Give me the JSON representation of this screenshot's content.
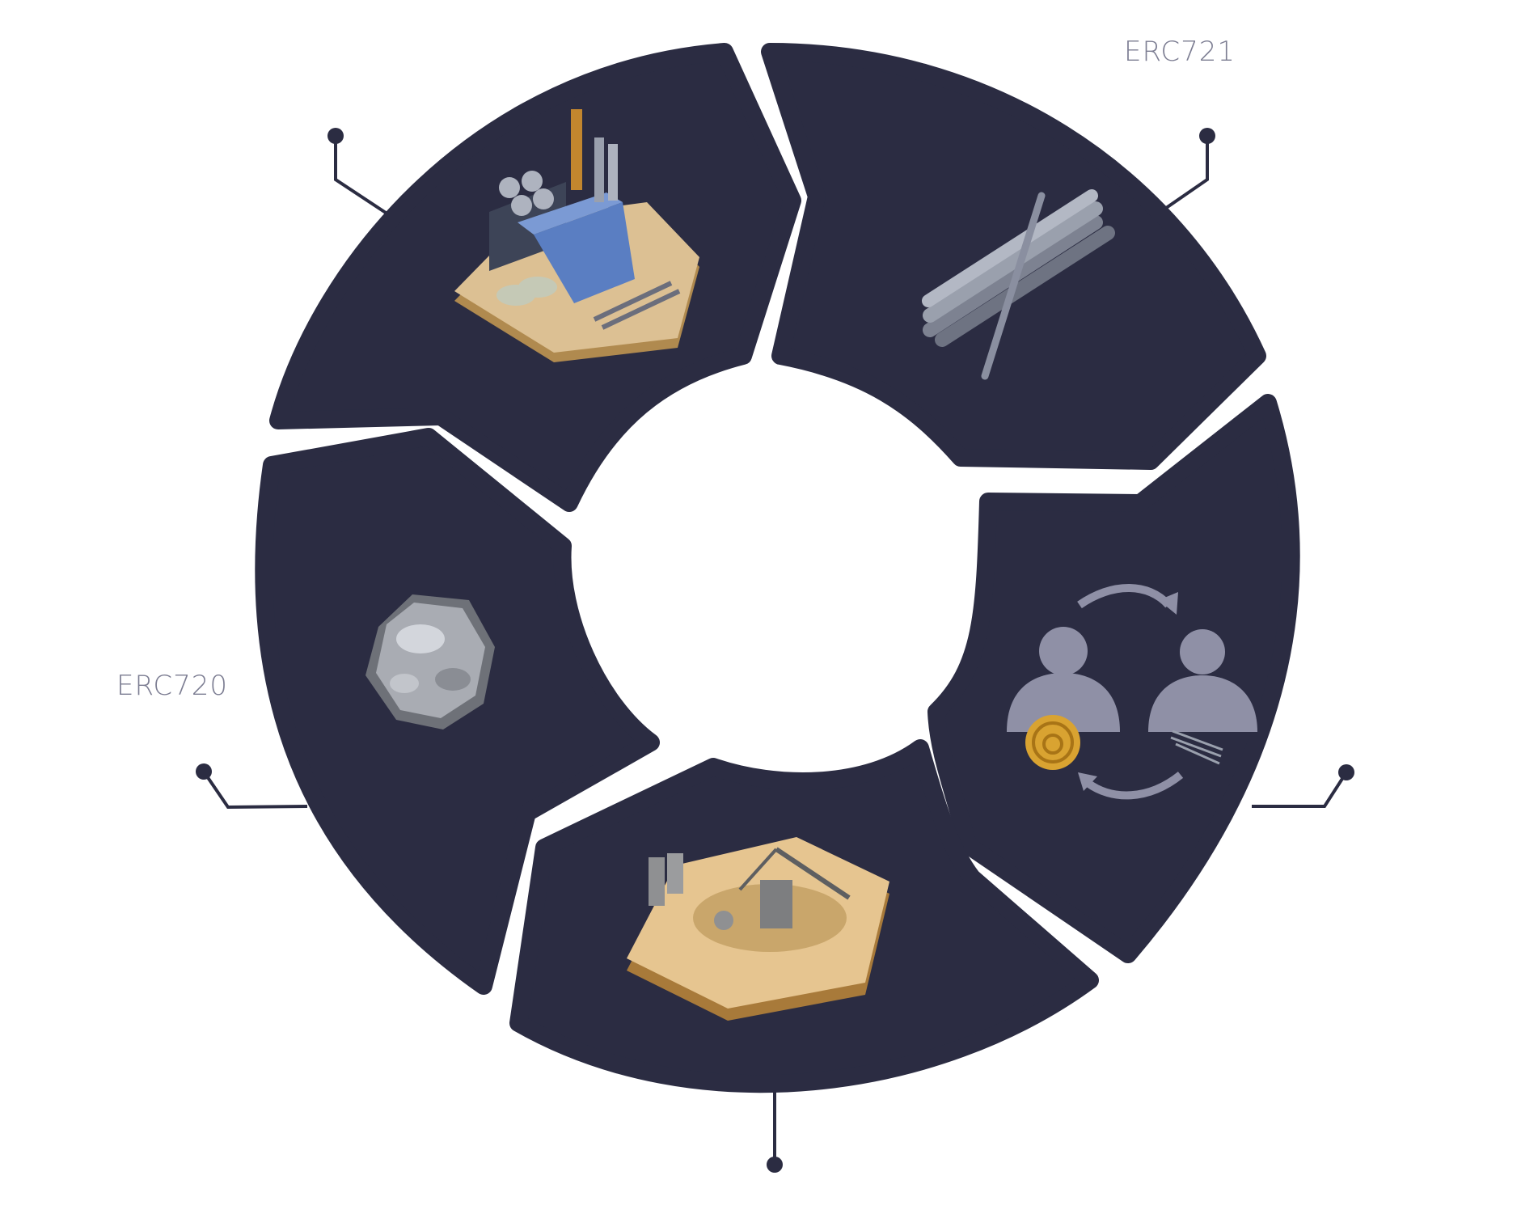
{
  "labels": {
    "erc721": "ERC721",
    "erc720": "ERC720"
  },
  "colors": {
    "segment": "#2b2c42",
    "background": "#ffffff",
    "connector": "#2b2c42",
    "label": "#7c7d92",
    "sand": "#dcc093",
    "sand_dark": "#b08a4f",
    "building_blue": "#5a7ec2",
    "metal": "#9aa0ad",
    "coin": "#d9a331",
    "person": "#8f90a6"
  },
  "segments": [
    {
      "id": "factory",
      "icon": "factory-icon"
    },
    {
      "id": "metal-rods",
      "icon": "metal-rods-icon"
    },
    {
      "id": "trade",
      "icon": "trade-exchange-icon"
    },
    {
      "id": "mine",
      "icon": "mine-pit-icon"
    },
    {
      "id": "ore",
      "icon": "ore-rock-icon"
    }
  ]
}
